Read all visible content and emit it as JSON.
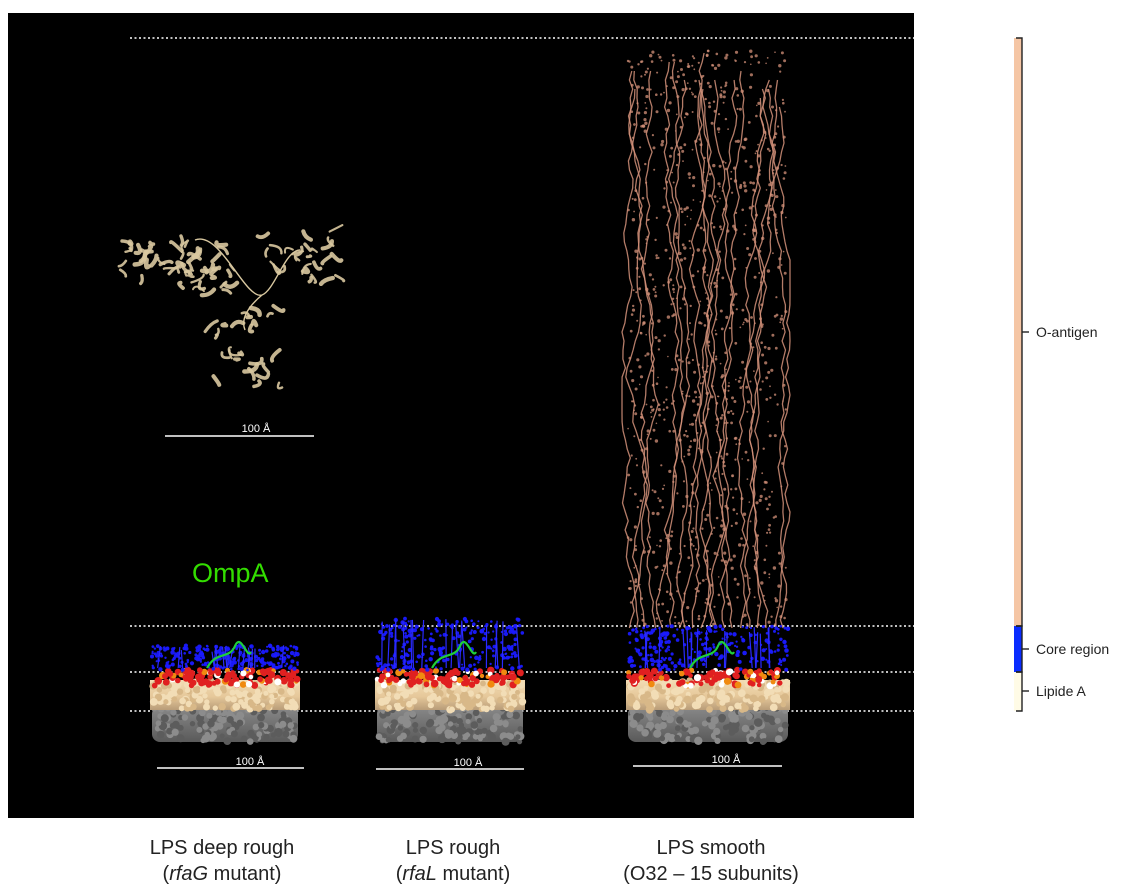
{
  "colors": {
    "panel_bg": "#000000",
    "protein": "#d9c8a0",
    "oantigen": "#d4927a",
    "core": "#1a1aff",
    "phosphate": "#e02020",
    "lipid_head": "#f0d8b0",
    "lipid_tail": "#6e6e6e",
    "ompa_label": "#33dd00",
    "bar_oantigen": "#f5c6a5",
    "bar_core": "#0a2cff",
    "bar_lipidA": "#fffbe6",
    "bracket": "#222222",
    "scale_line": "#ffffff"
  },
  "labels": {
    "ompa": "OmpA",
    "scale": "100 Å",
    "o_antigen": "O-antigen",
    "core_region": "Core region",
    "lipide_a": "Lipide A"
  },
  "captions": [
    {
      "line1": "LPS deep rough",
      "italic": "rfaG",
      "rest": " mutant)"
    },
    {
      "line1": "LPS rough",
      "italic": "rfaL",
      "rest": " mutant)"
    },
    {
      "line1": "LPS smooth",
      "italic": "",
      "rest": "O32 – 15 subunits)"
    }
  ]
}
